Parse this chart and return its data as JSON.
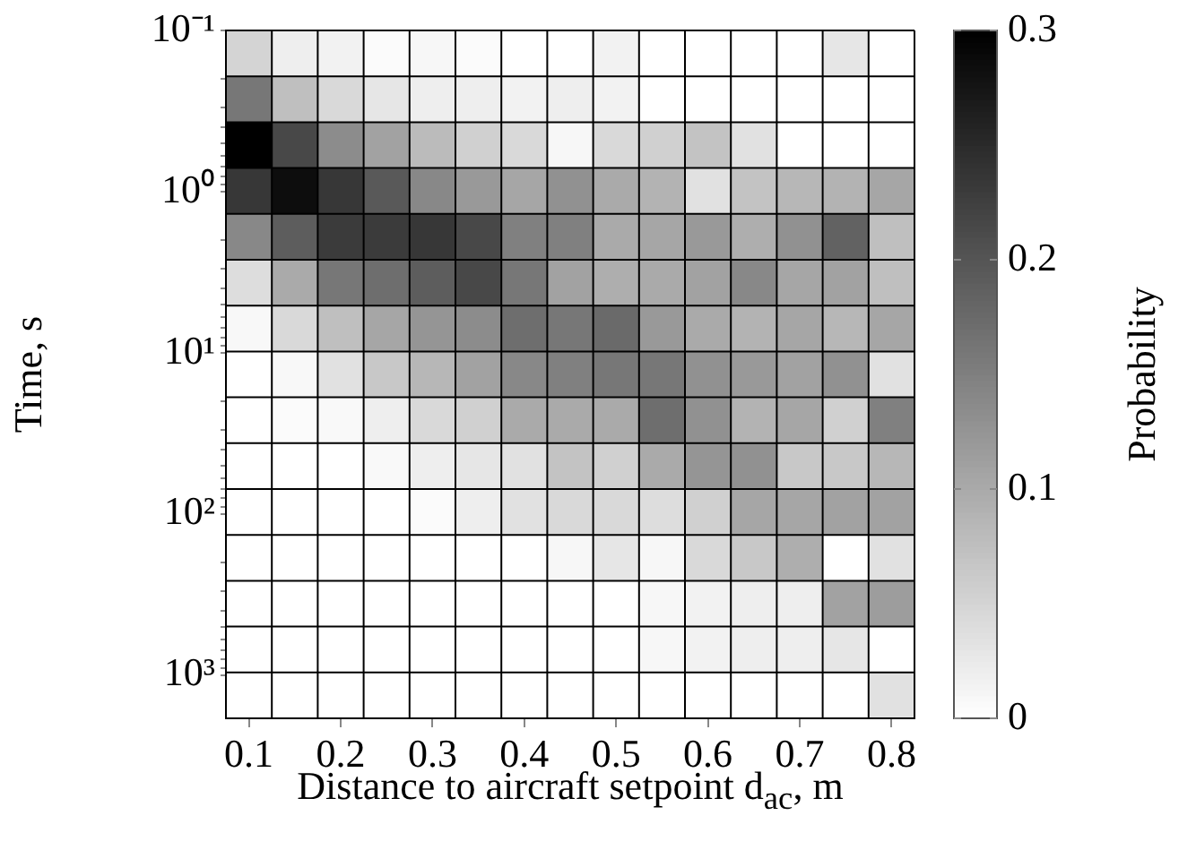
{
  "chart_data": {
    "type": "heatmap",
    "xlabel": "Distance to aircraft setpoint d$_{ac}$, m",
    "ylabel": "Time, s",
    "clabel": "Probability",
    "categories": [
      "0.1",
      null,
      "0.2",
      null,
      "0.3",
      null,
      "0.4",
      null,
      "0.5",
      null,
      "0.6",
      null,
      "0.7",
      null,
      "0.8"
    ],
    "log": "y",
    "ylim": [
      1850,
      0.1
    ],
    "yticks": [
      {
        "value": 0.1,
        "label": "10⁻¹"
      },
      {
        "value": 0.2,
        "label": null
      },
      {
        "value": 0.3,
        "label": null
      },
      {
        "value": 0.4,
        "label": null
      },
      {
        "value": 0.5,
        "label": null
      },
      {
        "value": 0.6,
        "label": null
      },
      {
        "value": 0.7,
        "label": null
      },
      {
        "value": 0.8,
        "label": null
      },
      {
        "value": 0.9,
        "label": null
      },
      {
        "value": 1,
        "label": "10⁰"
      },
      {
        "value": 2,
        "label": null
      },
      {
        "value": 3,
        "label": null
      },
      {
        "value": 4,
        "label": null
      },
      {
        "value": 5,
        "label": null
      },
      {
        "value": 6,
        "label": null
      },
      {
        "value": 7,
        "label": null
      },
      {
        "value": 8,
        "label": null
      },
      {
        "value": 9,
        "label": null
      },
      {
        "value": 10,
        "label": "10¹"
      },
      {
        "value": 20,
        "label": null
      },
      {
        "value": 30,
        "label": null
      },
      {
        "value": 40,
        "label": null
      },
      {
        "value": 50,
        "label": null
      },
      {
        "value": 60,
        "label": null
      },
      {
        "value": 70,
        "label": null
      },
      {
        "value": 80,
        "label": null
      },
      {
        "value": 90,
        "label": null
      },
      {
        "value": 100,
        "label": "10²"
      },
      {
        "value": 200,
        "label": null
      },
      {
        "value": 300,
        "label": null
      },
      {
        "value": 400,
        "label": null
      },
      {
        "value": 500,
        "label": null
      },
      {
        "value": 600,
        "label": null
      },
      {
        "value": 700,
        "label": null
      },
      {
        "value": 800,
        "label": null
      },
      {
        "value": 900,
        "label": null
      },
      {
        "value": 1000,
        "label": "10³"
      }
    ],
    "grid": true,
    "clim": [
      0,
      0.3
    ],
    "cticks": [
      0,
      0.1,
      0.2,
      0.3
    ],
    "cells": [
      [
        0.05,
        0.02,
        0.015,
        0.005,
        0.01,
        0.005,
        0,
        0,
        0.015,
        0,
        0,
        0,
        0,
        0.03,
        0
      ],
      [
        0.16,
        0.075,
        0.045,
        0.03,
        0.02,
        0.02,
        0.015,
        0.02,
        0.015,
        0,
        0,
        0,
        0,
        0,
        0
      ],
      [
        0.3,
        0.215,
        0.135,
        0.11,
        0.08,
        0.055,
        0.045,
        0.01,
        0.045,
        0.055,
        0.07,
        0.035,
        0,
        0,
        0
      ],
      [
        0.235,
        0.285,
        0.235,
        0.195,
        0.14,
        0.12,
        0.105,
        0.13,
        0.1,
        0.09,
        0.035,
        0.07,
        0.085,
        0.09,
        0.105
      ],
      [
        0.14,
        0.19,
        0.23,
        0.23,
        0.235,
        0.215,
        0.15,
        0.15,
        0.1,
        0.105,
        0.12,
        0.095,
        0.13,
        0.185,
        0.075
      ],
      [
        0.04,
        0.1,
        0.16,
        0.17,
        0.19,
        0.215,
        0.16,
        0.11,
        0.095,
        0.1,
        0.11,
        0.14,
        0.105,
        0.11,
        0.075
      ],
      [
        0.008,
        0.045,
        0.075,
        0.105,
        0.125,
        0.135,
        0.17,
        0.16,
        0.175,
        0.12,
        0.1,
        0.09,
        0.105,
        0.085,
        0.105
      ],
      [
        0,
        0.008,
        0.035,
        0.065,
        0.085,
        0.11,
        0.14,
        0.15,
        0.16,
        0.16,
        0.13,
        0.12,
        0.11,
        0.13,
        0.035
      ],
      [
        0,
        0.005,
        0.007,
        0.02,
        0.045,
        0.055,
        0.1,
        0.1,
        0.1,
        0.17,
        0.13,
        0.09,
        0.105,
        0.055,
        0.15
      ],
      [
        0,
        0,
        0,
        0.007,
        0.02,
        0.03,
        0.035,
        0.07,
        0.055,
        0.1,
        0.125,
        0.13,
        0.065,
        0.065,
        0.085
      ],
      [
        0,
        0,
        0,
        0,
        0.005,
        0.02,
        0.035,
        0.045,
        0.045,
        0.04,
        0.055,
        0.105,
        0.105,
        0.11,
        0.11
      ],
      [
        0,
        0,
        0,
        0,
        0,
        0,
        0,
        0.01,
        0.03,
        0.01,
        0.045,
        0.065,
        0.095,
        0,
        0.035
      ],
      [
        0,
        0,
        0,
        0,
        0,
        0,
        0,
        0,
        0,
        0.01,
        0.015,
        0.02,
        0.02,
        0.11,
        0.115
      ],
      [
        0,
        0,
        0,
        0,
        0,
        0,
        0,
        0,
        0,
        0.01,
        0.015,
        0.02,
        0.02,
        0.03,
        0
      ],
      [
        0,
        0,
        0,
        0,
        0,
        0,
        0,
        0,
        0,
        0,
        0,
        0,
        0,
        0,
        0.035
      ]
    ]
  }
}
